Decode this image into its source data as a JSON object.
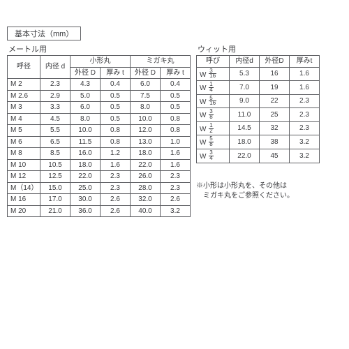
{
  "title_box": "基本寸法（mm）",
  "metric": {
    "title": "メートル用",
    "head": {
      "nominal": "呼径",
      "inner": "内径 d",
      "group_small": "小形丸",
      "group_migaki": "ミガキ丸",
      "outer": "外径 D",
      "thick": "厚み t"
    },
    "rows": [
      {
        "n": "M 2",
        "d": "2.3",
        "sD": "4.3",
        "st": "0.4",
        "mD": "6.0",
        "mt": "0.4"
      },
      {
        "n": "M 2.6",
        "d": "2.9",
        "sD": "5.0",
        "st": "0.5",
        "mD": "7.5",
        "mt": "0.5"
      },
      {
        "n": "M 3",
        "d": "3.3",
        "sD": "6.0",
        "st": "0.5",
        "mD": "8.0",
        "mt": "0.5"
      },
      {
        "n": "M 4",
        "d": "4.5",
        "sD": "8.0",
        "st": "0.5",
        "mD": "10.0",
        "mt": "0.8"
      },
      {
        "n": "M 5",
        "d": "5.5",
        "sD": "10.0",
        "st": "0.8",
        "mD": "12.0",
        "mt": "0.8"
      },
      {
        "n": "M 6",
        "d": "6.5",
        "sD": "11.5",
        "st": "0.8",
        "mD": "13.0",
        "mt": "1.0"
      },
      {
        "n": "M 8",
        "d": "8.5",
        "sD": "16.0",
        "st": "1.2",
        "mD": "18.0",
        "mt": "1.6"
      },
      {
        "n": "M 10",
        "d": "10.5",
        "sD": "18.0",
        "st": "1.6",
        "mD": "22.0",
        "mt": "1.6"
      },
      {
        "n": "M 12",
        "d": "12.5",
        "sD": "22.0",
        "st": "2.3",
        "mD": "26.0",
        "mt": "2.3"
      },
      {
        "n": "M（14）",
        "d": "15.0",
        "sD": "25.0",
        "st": "2.3",
        "mD": "28.0",
        "mt": "2.3"
      },
      {
        "n": "M 16",
        "d": "17.0",
        "sD": "30.0",
        "st": "2.6",
        "mD": "32.0",
        "mt": "2.6"
      },
      {
        "n": "M 20",
        "d": "21.0",
        "sD": "36.0",
        "st": "2.6",
        "mD": "40.0",
        "mt": "3.2"
      }
    ]
  },
  "whit": {
    "title": "ウィット用",
    "head": {
      "nominal": "呼び",
      "inner": "内径d",
      "outer": "外径D",
      "thick": "厚みt"
    },
    "rows": [
      {
        "n": [
          "W",
          "3",
          "16"
        ],
        "d": "5.3",
        "D": "16",
        "t": "1.6"
      },
      {
        "n": [
          "W",
          "1",
          "4"
        ],
        "d": "7.0",
        "D": "19",
        "t": "1.6"
      },
      {
        "n": [
          "W",
          "5",
          "16"
        ],
        "d": "9.0",
        "D": "22",
        "t": "2.3"
      },
      {
        "n": [
          "W",
          "3",
          "8"
        ],
        "d": "11.0",
        "D": "25",
        "t": "2.3"
      },
      {
        "n": [
          "W",
          "1",
          "2"
        ],
        "d": "14.5",
        "D": "32",
        "t": "2.3"
      },
      {
        "n": [
          "W",
          "5",
          "8"
        ],
        "d": "18.0",
        "D": "38",
        "t": "3.2"
      },
      {
        "n": [
          "W",
          "3",
          "4"
        ],
        "d": "22.0",
        "D": "45",
        "t": "3.2"
      }
    ]
  },
  "note_l1": "※小形は小形丸を、その他は",
  "note_l2": "　ミガキ丸をご参照ください。"
}
